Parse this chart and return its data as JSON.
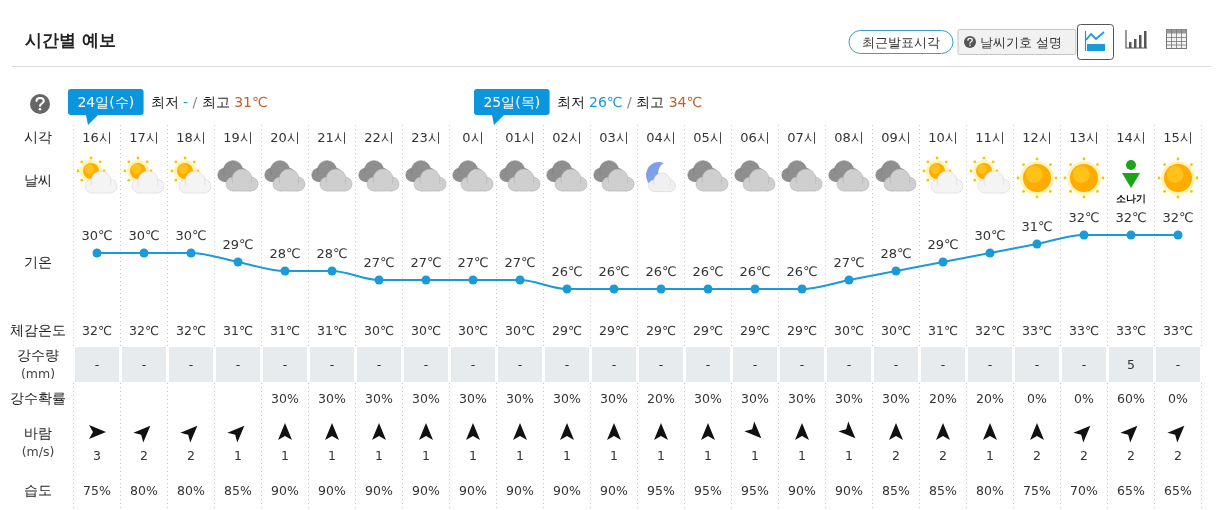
{
  "chart_data": [
    {
      "type": "line",
      "title": "시간별 예보",
      "xlabel": "시각",
      "categories": [
        "16시",
        "17시",
        "18시",
        "19시",
        "20시",
        "21시",
        "22시",
        "23시",
        "0시",
        "01시",
        "02시",
        "03시",
        "04시",
        "05시",
        "06시",
        "07시",
        "08시",
        "09시",
        "10시",
        "11시",
        "12시",
        "13시",
        "14시",
        "15시"
      ],
      "series": [
        {
          "name": "기온",
          "type": "line",
          "color": "#1b9ad8",
          "values": [
            30,
            30,
            30,
            29,
            28,
            28,
            27,
            27,
            27,
            27,
            26,
            26,
            26,
            26,
            26,
            26,
            27,
            28,
            29,
            30,
            31,
            32,
            32,
            32
          ],
          "value_labels": [
            "30℃",
            "30℃",
            "30℃",
            "29℃",
            "28℃",
            "28℃",
            "27℃",
            "27℃",
            "27℃",
            "27℃",
            "26℃",
            "26℃",
            "26℃",
            "26℃",
            "26℃",
            "26℃",
            "27℃",
            "28℃",
            "29℃",
            "30℃",
            "31℃",
            "32℃",
            "32℃",
            "32℃"
          ]
        }
      ],
      "marker": "circle",
      "tick_labels": "x",
      "annotations": [
        "최근발표시각",
        "날씨기호 설명",
        "24일(수)",
        "최저 - / 최고 31℃",
        "25일(목)",
        "최저 26℃ / 최고 34℃",
        "날씨",
        "소나기"
      ]
    },
    {
      "type": "heatmap",
      "categories": [
        null,
        null,
        null,
        null,
        null,
        null,
        null,
        null,
        null,
        null,
        null,
        null,
        null,
        null,
        null,
        null,
        null,
        null,
        null,
        null,
        null,
        null,
        null,
        null
      ],
      "y_categories": [
        "체감온도",
        "강수량 (mm)",
        "강수확률",
        "바람 (m/s)",
        "습도"
      ],
      "tick_labels": "y",
      "cells": [
        [
          32,
          32,
          32,
          31,
          31,
          31,
          30,
          30,
          30,
          30,
          29,
          29,
          29,
          29,
          29,
          29,
          30,
          30,
          31,
          32,
          33,
          33,
          33,
          33
        ],
        [
          null,
          null,
          null,
          null,
          null,
          null,
          null,
          null,
          null,
          null,
          null,
          null,
          null,
          null,
          null,
          null,
          null,
          null,
          null,
          null,
          null,
          null,
          5,
          null
        ],
        [
          null,
          null,
          null,
          null,
          30,
          30,
          30,
          30,
          30,
          30,
          30,
          30,
          20,
          30,
          30,
          30,
          30,
          30,
          20,
          20,
          0,
          0,
          60,
          0
        ],
        [
          3,
          2,
          2,
          1,
          1,
          1,
          1,
          1,
          1,
          1,
          1,
          1,
          1,
          1,
          1,
          1,
          1,
          2,
          2,
          1,
          2,
          2,
          2,
          2
        ],
        [
          75,
          80,
          80,
          85,
          90,
          90,
          90,
          90,
          90,
          90,
          90,
          90,
          95,
          95,
          95,
          90,
          90,
          85,
          85,
          80,
          75,
          70,
          65,
          65
        ]
      ],
      "cell_labels": [
        [
          "32℃",
          "32℃",
          "32℃",
          "31℃",
          "31℃",
          "31℃",
          "30℃",
          "30℃",
          "30℃",
          "30℃",
          "29℃",
          "29℃",
          "29℃",
          "29℃",
          "29℃",
          "29℃",
          "30℃",
          "30℃",
          "31℃",
          "32℃",
          "33℃",
          "33℃",
          "33℃",
          "33℃"
        ],
        [
          "-",
          "-",
          "-",
          "-",
          "-",
          "-",
          "-",
          "-",
          "-",
          "-",
          "-",
          "-",
          "-",
          "-",
          "-",
          "-",
          "-",
          "-",
          "-",
          "-",
          "-",
          "-",
          "5",
          "-"
        ],
        [
          null,
          null,
          null,
          null,
          "30%",
          "30%",
          "30%",
          "30%",
          "30%",
          "30%",
          "30%",
          "30%",
          "20%",
          "30%",
          "30%",
          "30%",
          "30%",
          "30%",
          "20%",
          "20%",
          "0%",
          "0%",
          "60%",
          "0%"
        ],
        [
          "3",
          "2",
          "2",
          "1",
          "1",
          "1",
          "1",
          "1",
          "1",
          "1",
          "1",
          "1",
          "1",
          "1",
          "1",
          "1",
          "1",
          "2",
          "2",
          "1",
          "2",
          "2",
          "2",
          "2"
        ],
        [
          "75%",
          "80%",
          "80%",
          "85%",
          "90%",
          "90%",
          "90%",
          "90%",
          "90%",
          "90%",
          "90%",
          "90%",
          "95%",
          "95%",
          "95%",
          "90%",
          "90%",
          "85%",
          "85%",
          "80%",
          "75%",
          "70%",
          "65%",
          "65%"
        ]
      ]
    }
  ]
}
